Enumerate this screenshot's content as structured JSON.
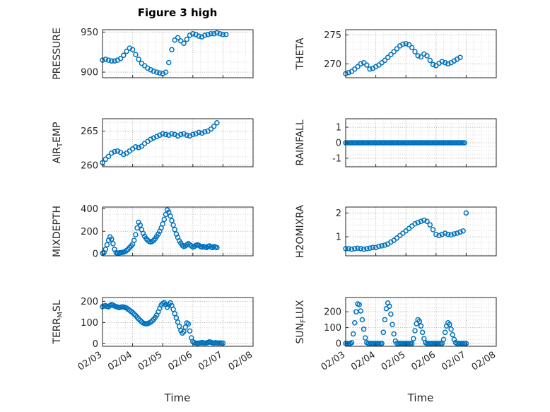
{
  "chart_data": {
    "type": "scatter",
    "title": "Figure 3 high",
    "xlabel": "Time",
    "marker": "o",
    "marker_color": "#0072BD",
    "axis_color": "#262626",
    "grid_color": "#a8a8a8",
    "minor_grid_color": "#d9d9d9",
    "grid": "on",
    "xlim": [
      0,
      5
    ],
    "x_ticks": [
      0,
      1,
      2,
      3,
      4,
      5
    ],
    "x_tick_labels": [
      "02/03",
      "02/04",
      "02/05",
      "02/06",
      "02/07",
      "02/08"
    ],
    "x_unit_note": "x is days after 02/03",
    "subplots": [
      {
        "name": "PRESSURE",
        "ylabel_parts": [
          {
            "text": "PRESSURE"
          }
        ],
        "yticks": [
          900,
          950
        ],
        "ylim": [
          893,
          953
        ],
        "x0": 0,
        "dx": 0.1,
        "show_x_tick_labels": false,
        "y": [
          915,
          916,
          915,
          914,
          914,
          915,
          917,
          921,
          926,
          930,
          928,
          922,
          916,
          911,
          908,
          905,
          903,
          901,
          900,
          899,
          898,
          900,
          912,
          928,
          940,
          943,
          939,
          936,
          941,
          946,
          948,
          947,
          945,
          944,
          946,
          947,
          948,
          948,
          949,
          948,
          947,
          947
        ]
      },
      {
        "name": "THETA",
        "ylabel_parts": [
          {
            "text": "THETA"
          }
        ],
        "yticks": [
          270,
          275
        ],
        "ylim": [
          267.6,
          275.9
        ],
        "x0": 0,
        "dx": 0.1,
        "show_x_tick_labels": false,
        "y": [
          268.3,
          268.5,
          268.7,
          269.1,
          269.5,
          270,
          270.2,
          269.8,
          269.1,
          269.2,
          269.5,
          269.8,
          270.2,
          270.6,
          271.1,
          271.6,
          272.1,
          272.6,
          273.1,
          273.4,
          273.5,
          273.3,
          272.8,
          272.1,
          271.4,
          271.2,
          271.7,
          271.4,
          270.6,
          269.9,
          269.7,
          270.1,
          270.4,
          270.2,
          270,
          270.2,
          270.5,
          270.8,
          271.1
        ]
      },
      {
        "name": "AIR_TEMP",
        "ylabel_parts": [
          {
            "text": "AIR"
          },
          {
            "text": "T",
            "sub": true
          },
          {
            "text": "EMP"
          }
        ],
        "yticks": [
          260,
          265
        ],
        "ylim": [
          259.8,
          266.8
        ],
        "x0": 0,
        "dx": 0.1,
        "show_x_tick_labels": false,
        "y": [
          260.4,
          260.9,
          261.3,
          261.8,
          262,
          262.1,
          261.9,
          261.6,
          261.8,
          262.1,
          262.4,
          262.7,
          262.6,
          262.8,
          263.2,
          263.5,
          263.8,
          264,
          264.2,
          264.4,
          264.6,
          264.5,
          264.4,
          264.6,
          264.5,
          264.3,
          264.5,
          264.6,
          264.4,
          264.3,
          264.5,
          264.6,
          264.8,
          264.7,
          264.9,
          265,
          265.3,
          265.7,
          266.2
        ]
      },
      {
        "name": "RAINFALL",
        "ylabel_parts": [
          {
            "text": "RAINFALL"
          }
        ],
        "yticks": [
          -1,
          0,
          1
        ],
        "ylim": [
          -1.55,
          1.55
        ],
        "x0": 0,
        "dx": 0.05,
        "show_x_tick_labels": false,
        "y": [
          0,
          0,
          0,
          0,
          0,
          0,
          0,
          0,
          0,
          0,
          0,
          0,
          0,
          0,
          0,
          0,
          0,
          0,
          0,
          0,
          0,
          0,
          0,
          0,
          0,
          0,
          0,
          0,
          0,
          0,
          0,
          0,
          0,
          0,
          0,
          0,
          0,
          0,
          0,
          0,
          0,
          0,
          0,
          0,
          0,
          0,
          0,
          0,
          0,
          0,
          0,
          0,
          0,
          0,
          0,
          0,
          0,
          0,
          0,
          0,
          0,
          0,
          0,
          0,
          0,
          0,
          0,
          0,
          0,
          0,
          0,
          0,
          0,
          0,
          0,
          0,
          0,
          0,
          0,
          0
        ]
      },
      {
        "name": "MIXDEPTH",
        "ylabel_parts": [
          {
            "text": "MIXDEPTH"
          }
        ],
        "yticks": [
          0,
          200,
          400
        ],
        "ylim": [
          -18,
          415
        ],
        "x0": 0,
        "dx": 0.05,
        "show_x_tick_labels": false,
        "y": [
          5,
          10,
          40,
          80,
          120,
          150,
          130,
          90,
          40,
          10,
          5,
          8,
          10,
          12,
          15,
          20,
          30,
          40,
          55,
          70,
          85,
          120,
          170,
          230,
          280,
          255,
          215,
          180,
          155,
          135,
          120,
          110,
          105,
          110,
          120,
          135,
          155,
          175,
          200,
          230,
          265,
          305,
          350,
          390,
          370,
          335,
          295,
          255,
          215,
          175,
          145,
          115,
          95,
          75,
          65,
          70,
          80,
          90,
          80,
          70,
          60,
          65,
          75,
          80,
          75,
          65,
          60,
          65,
          60,
          55,
          65,
          70,
          60,
          55,
          65,
          60,
          55
        ]
      },
      {
        "name": "H2OMIXRA",
        "ylabel_parts": [
          {
            "text": "H2OMIXRA"
          }
        ],
        "yticks": [
          1,
          2
        ],
        "ylim": [
          0.2,
          2.25
        ],
        "x0": 0,
        "dx": 0.1,
        "show_x_tick_labels": false,
        "y": [
          0.5,
          0.5,
          0.48,
          0.5,
          0.52,
          0.5,
          0.48,
          0.5,
          0.52,
          0.55,
          0.55,
          0.6,
          0.62,
          0.65,
          0.7,
          0.78,
          0.85,
          0.95,
          1.05,
          1.15,
          1.25,
          1.35,
          1.45,
          1.55,
          1.6,
          1.65,
          1.7,
          1.65,
          1.5,
          1.3,
          1.1,
          1.05,
          1.1,
          1.15,
          1.1,
          1.08,
          1.12,
          1.15,
          1.2,
          1.25,
          2
        ]
      },
      {
        "name": "TERR_MSL",
        "ylabel_parts": [
          {
            "text": "TERR"
          },
          {
            "text": "M",
            "sub": true
          },
          {
            "text": "SL"
          }
        ],
        "yticks": [
          0,
          100,
          200
        ],
        "ylim": [
          -12,
          218
        ],
        "x0": 0,
        "dx": 0.05,
        "show_x_tick_labels": true,
        "y": [
          175,
          178,
          180,
          176,
          174,
          180,
          185,
          182,
          178,
          175,
          173,
          170,
          172,
          174,
          173,
          171,
          168,
          163,
          158,
          152,
          147,
          140,
          133,
          125,
          117,
          110,
          103,
          98,
          95,
          94,
          95,
          98,
          102,
          108,
          115,
          124,
          135,
          150,
          167,
          182,
          190,
          194,
          185,
          172,
          184,
          193,
          180,
          162,
          142,
          122,
          102,
          82,
          62,
          50,
          58,
          78,
          98,
          93,
          60,
          28,
          10,
          5,
          3,
          2,
          3,
          4,
          6,
          4,
          3,
          4,
          6,
          9,
          7,
          4,
          3,
          5,
          4,
          3,
          4,
          3,
          3
        ]
      },
      {
        "name": "SUN_FLUX",
        "ylabel_parts": [
          {
            "text": "SUN"
          },
          {
            "text": "F",
            "sub": true
          },
          {
            "text": "LUX"
          }
        ],
        "yticks": [
          0,
          100,
          200
        ],
        "ylim": [
          -18,
          290
        ],
        "x0": 0,
        "dx": 0.05,
        "show_x_tick_labels": true,
        "y": [
          0,
          0,
          0,
          0,
          5,
          60,
          130,
          200,
          250,
          245,
          205,
          150,
          90,
          35,
          5,
          0,
          0,
          0,
          0,
          0,
          0,
          0,
          0,
          0,
          0,
          70,
          150,
          220,
          255,
          235,
          185,
          120,
          60,
          15,
          0,
          0,
          0,
          0,
          0,
          0,
          0,
          0,
          0,
          0,
          0,
          30,
          80,
          125,
          150,
          140,
          110,
          70,
          30,
          5,
          0,
          0,
          0,
          0,
          0,
          0,
          0,
          0,
          0,
          0,
          0,
          25,
          70,
          110,
          130,
          120,
          90,
          55,
          25,
          5,
          0,
          0,
          0,
          0,
          0,
          0,
          0
        ]
      }
    ]
  }
}
